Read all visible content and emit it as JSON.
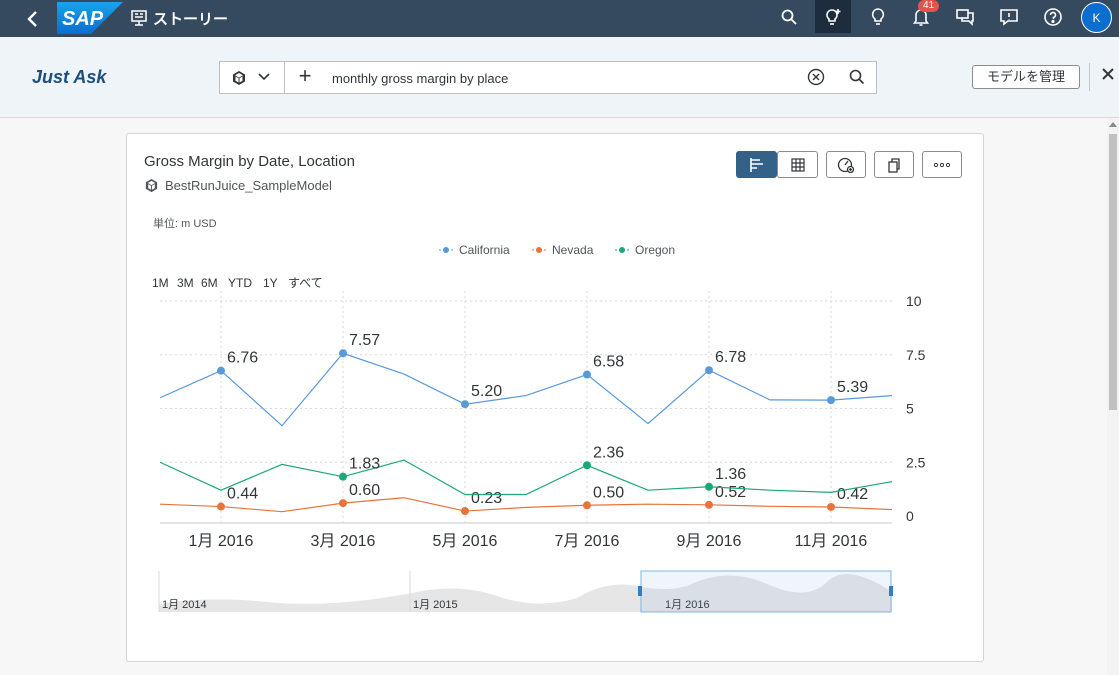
{
  "shell": {
    "back_icon": "back-chevron-icon",
    "logo_text": "SAP",
    "app_title": "ストーリー",
    "notification_count": "41",
    "avatar_initial": "K",
    "colors": {
      "shellbar": "#354a5f",
      "active": "#1d2d3e",
      "badge": "#e9514c",
      "avatar": "#0a6ed1"
    }
  },
  "ask": {
    "title": "Just Ask",
    "query": "monthly gross margin by place",
    "manage_label": "モデルを管理"
  },
  "card": {
    "title": "Gross Margin by Date, Location",
    "model": "BestRunJuice_SampleModel",
    "unit_label": "単位: m USD",
    "range_buttons": [
      "1M",
      "3M",
      "6M",
      "YTD",
      "1Y",
      "すべて"
    ]
  },
  "chart_data": {
    "type": "line",
    "unit": "m USD",
    "y_ticks": [
      "10",
      "7.5",
      "5",
      "2.5",
      "0"
    ],
    "ylim": [
      0,
      10
    ],
    "y_axis_position": "right",
    "grid": "dotted",
    "legend_placement": "top-center",
    "x": [
      "2015-12",
      "2016-01",
      "2016-02",
      "2016-03",
      "2016-04",
      "2016-05",
      "2016-06",
      "2016-07",
      "2016-08",
      "2016-09",
      "2016-10",
      "2016-11",
      "2016-12"
    ],
    "x_tick_labels": [
      {
        "x": "2016-01",
        "label": "1月 2016"
      },
      {
        "x": "2016-03",
        "label": "3月 2016"
      },
      {
        "x": "2016-05",
        "label": "5月 2016"
      },
      {
        "x": "2016-07",
        "label": "7月 2016"
      },
      {
        "x": "2016-09",
        "label": "9月 2016"
      },
      {
        "x": "2016-11",
        "label": "11月 2016"
      }
    ],
    "series": [
      {
        "name": "California",
        "color": "#5899da",
        "values": [
          5.5,
          6.76,
          4.2,
          7.57,
          6.6,
          5.2,
          5.6,
          6.58,
          4.3,
          6.78,
          5.4,
          5.39,
          5.6
        ],
        "labels": {
          "2016-01": "6.76",
          "2016-03": "7.57",
          "2016-05": "5.20",
          "2016-07": "6.58",
          "2016-09": "6.78",
          "2016-11": "5.39"
        }
      },
      {
        "name": "Nevada",
        "color": "#e8743b",
        "values": [
          0.55,
          0.44,
          0.2,
          0.6,
          0.85,
          0.23,
          0.4,
          0.5,
          0.55,
          0.52,
          0.45,
          0.42,
          0.3
        ],
        "labels": {
          "2016-01": "0.44",
          "2016-03": "0.60",
          "2016-05": "0.23",
          "2016-07": "0.50",
          "2016-09": "0.52",
          "2016-11": "0.42"
        }
      },
      {
        "name": "Oregon",
        "color": "#19a979",
        "values": [
          2.5,
          1.2,
          2.4,
          1.83,
          2.6,
          1.0,
          1.0,
          2.36,
          1.2,
          1.36,
          1.2,
          1.1,
          1.6
        ],
        "labels": {
          "2016-03": "1.83",
          "2016-07": "2.36",
          "2016-09": "1.36"
        }
      }
    ],
    "navigator": {
      "labels": [
        "1月 2014",
        "1月 2015",
        "1月 2016"
      ],
      "selected": "2016"
    }
  }
}
